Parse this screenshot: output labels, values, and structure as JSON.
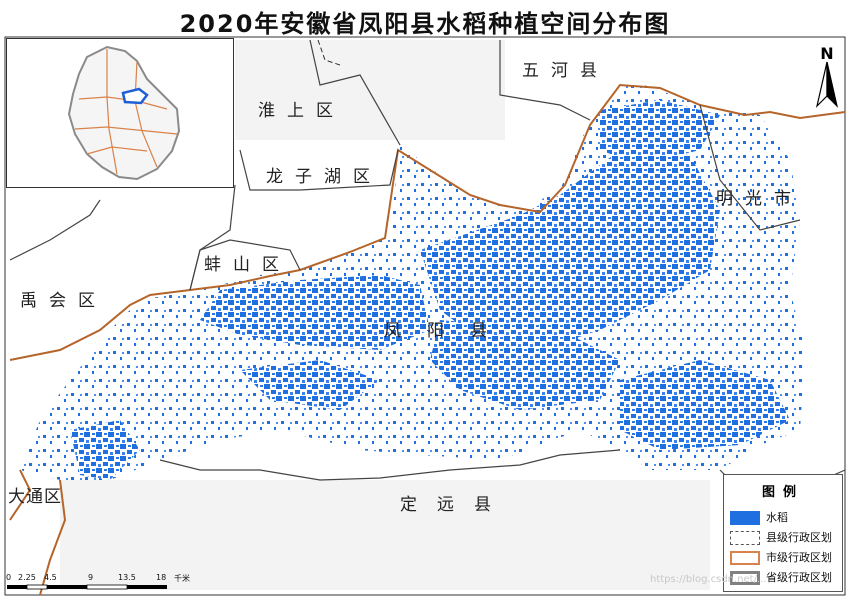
{
  "title": "2020年安徽省凤阳县水稻种植空间分布图",
  "places": {
    "wuhe": "五河县",
    "huaishang": "淮上区",
    "longzihu": "龙子湖区",
    "mingguang": "明光市",
    "bengshan": "蚌山区",
    "yuhui": "禹会区",
    "fengyang": "凤阳县",
    "datong": "大通区",
    "dingyuan": "定远县"
  },
  "north_arrow": {
    "label": "N"
  },
  "legend": {
    "title": "图例",
    "items": [
      {
        "label": "水稻",
        "symbol": "fill",
        "color": "#1f6fe0"
      },
      {
        "label": "县级行政区划",
        "symbol": "dashed-outline",
        "color": "#555555"
      },
      {
        "label": "市级行政区划",
        "symbol": "outline",
        "color": "#d9824a"
      },
      {
        "label": "省级行政区划",
        "symbol": "outline",
        "color": "#808080"
      }
    ]
  },
  "scale_bar": {
    "ticks": [
      "0",
      "2.25",
      "4.5",
      "9",
      "13.5",
      "18"
    ],
    "unit": "千米"
  },
  "watermark": "https://blog.csdn.net/...",
  "colors": {
    "rice": "#1f6fe0",
    "city_boundary": "#b5652a",
    "county_boundary": "#444444",
    "province_boundary": "#808080",
    "background_land": "#ffffff"
  }
}
